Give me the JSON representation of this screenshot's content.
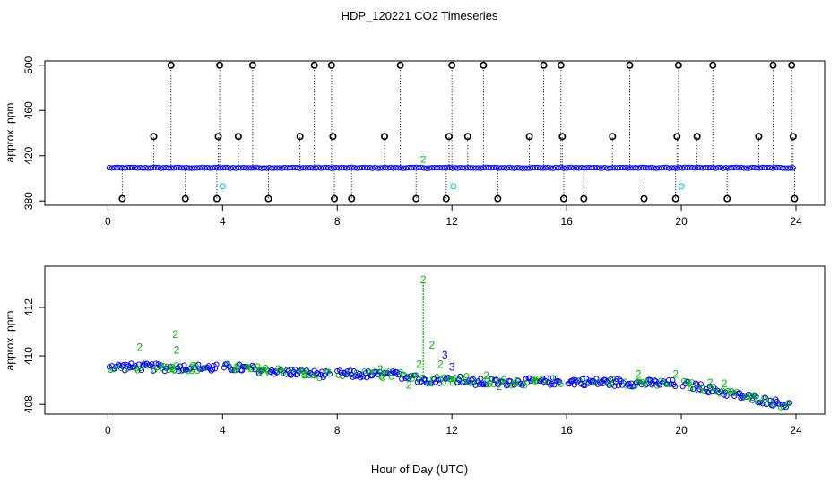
{
  "title": "HDP_120221  CO2 Timeseries",
  "xlabel": "Hour of Day (UTC)",
  "colors": {
    "outlier": "#000000",
    "flag_low": "#22cccc",
    "primary": "#0000ff",
    "secondary": "#00bb00"
  },
  "chart_data": [
    {
      "type": "scatter",
      "ylabel": "approx. ppm",
      "xlim": [
        -2.2,
        25.0
      ],
      "ylim": [
        376.2,
        503.8
      ],
      "xticks": [
        0,
        4,
        8,
        12,
        16,
        20,
        24
      ],
      "yticks": [
        380,
        420,
        460,
        500
      ],
      "baseline": {
        "value": 409.3,
        "x_range": [
          0.05,
          23.9
        ]
      },
      "outliers_high_500": [
        2.2,
        3.9,
        5.05,
        7.2,
        7.8,
        10.2,
        12.0,
        13.1,
        15.2,
        15.8,
        18.2,
        19.9,
        21.1,
        23.2,
        23.85
      ],
      "outliers_437": [
        1.6,
        3.85,
        4.55,
        6.7,
        7.85,
        9.65,
        11.9,
        12.55,
        14.7,
        15.85,
        17.6,
        19.85,
        20.55,
        22.7,
        23.9
      ],
      "outliers_low_382": [
        0.5,
        2.7,
        3.8,
        5.6,
        7.9,
        8.5,
        10.75,
        11.8,
        13.6,
        15.9,
        16.6,
        18.7,
        19.8,
        21.6,
        23.95
      ],
      "flag_points": [
        {
          "x": 4.0,
          "y": 393
        },
        {
          "x": 12.05,
          "y": 393
        },
        {
          "x": 20.0,
          "y": 393
        }
      ],
      "spike_label": {
        "x": 11.0,
        "y": 414,
        "text": "2"
      }
    },
    {
      "type": "scatter",
      "ylabel": "approx. ppm",
      "xlim": [
        -2.2,
        25.0
      ],
      "ylim": [
        407.6,
        413.7
      ],
      "xticks": [
        0,
        4,
        8,
        12,
        16,
        20,
        24
      ],
      "yticks": [
        408,
        410,
        412
      ],
      "segments": [
        {
          "x_start": 0.05,
          "x_end": 3.8,
          "y_start": 409.55,
          "y_end": 409.5
        },
        {
          "x_start": 4.05,
          "x_end": 7.75,
          "y_start": 409.55,
          "y_end": 409.2
        },
        {
          "x_start": 8.0,
          "x_end": 10.75,
          "y_start": 409.25,
          "y_end": 409.2
        },
        {
          "x_start": 10.8,
          "x_end": 12.6,
          "y_start": 409.0,
          "y_end": 409.05
        },
        {
          "x_start": 12.6,
          "x_end": 15.8,
          "y_start": 408.9,
          "y_end": 408.95
        },
        {
          "x_start": 16.05,
          "x_end": 19.8,
          "y_start": 408.95,
          "y_end": 408.85
        },
        {
          "x_start": 20.05,
          "x_end": 23.8,
          "y_start": 408.85,
          "y_end": 407.95
        }
      ],
      "labels_2": [
        {
          "x": 1.1,
          "y": 410.2
        },
        {
          "x": 2.35,
          "y": 410.75
        },
        {
          "x": 2.4,
          "y": 410.1
        },
        {
          "x": 2.9,
          "y": 409.35
        },
        {
          "x": 5.3,
          "y": 409.25
        },
        {
          "x": 6.9,
          "y": 409.1
        },
        {
          "x": 9.5,
          "y": 409.3
        },
        {
          "x": 10.5,
          "y": 408.65
        },
        {
          "x": 10.85,
          "y": 409.5
        },
        {
          "x": 11.0,
          "y": 413.0
        },
        {
          "x": 11.3,
          "y": 410.3
        },
        {
          "x": 11.6,
          "y": 409.5
        },
        {
          "x": 13.2,
          "y": 409.05
        },
        {
          "x": 13.65,
          "y": 408.6
        },
        {
          "x": 18.5,
          "y": 409.1
        },
        {
          "x": 19.8,
          "y": 409.1
        },
        {
          "x": 21.0,
          "y": 408.75
        },
        {
          "x": 21.5,
          "y": 408.7
        },
        {
          "x": 22.5,
          "y": 408.15
        }
      ],
      "labels_3": [
        {
          "x": 11.75,
          "y": 409.9
        },
        {
          "x": 12.0,
          "y": 409.4
        }
      ],
      "spike": {
        "x": 11.0,
        "y_peak": 413.0,
        "y_base": 409.3
      }
    }
  ]
}
